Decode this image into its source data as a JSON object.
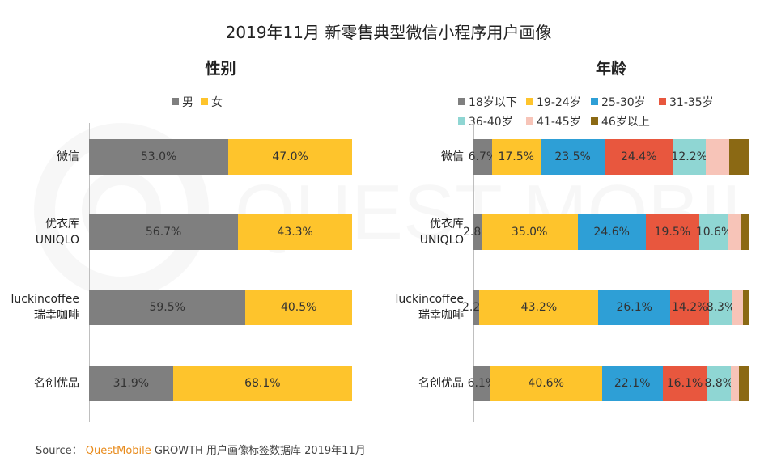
{
  "title": "2019年11月 新零售典型微信小程序用户画像",
  "source": {
    "prefix": "Source：",
    "brand": "QuestMobile",
    "text": "GROWTH 用户画像标签数据库 2019年11月"
  },
  "watermark": "QUEST MOBILE",
  "colors": {
    "gender": [
      "#7f7f7f",
      "#fec42c"
    ],
    "age": [
      "#7f7f7f",
      "#fec42c",
      "#2e9fd6",
      "#e8573e",
      "#8fd6d3",
      "#f7c4b8",
      "#8b6914"
    ]
  },
  "chart_data": [
    {
      "type": "bar",
      "stacked": "100%",
      "orientation": "horizontal",
      "title": "性别",
      "categories": [
        [
          "微信"
        ],
        [
          "优衣库",
          "UNIQLO"
        ],
        [
          "luckincoffee",
          "瑞幸咖啡"
        ],
        [
          "名创优品"
        ]
      ],
      "legend_position": "top",
      "series": [
        {
          "name": "男",
          "values": [
            53.0,
            56.7,
            59.5,
            31.9
          ],
          "labels": [
            "53.0%",
            "56.7%",
            "59.5%",
            "31.9%"
          ]
        },
        {
          "name": "女",
          "values": [
            47.0,
            43.3,
            40.5,
            68.1
          ],
          "labels": [
            "47.0%",
            "43.3%",
            "40.5%",
            "68.1%"
          ]
        }
      ]
    },
    {
      "type": "bar",
      "stacked": "100%",
      "orientation": "horizontal",
      "title": "年龄",
      "categories": [
        [
          "微信"
        ],
        [
          "优衣库",
          "UNIQLO"
        ],
        [
          "luckincoffee",
          "瑞幸咖啡"
        ],
        [
          "名创优品"
        ]
      ],
      "legend_position": "top",
      "series": [
        {
          "name": "18岁以下",
          "values": [
            6.7,
            2.8,
            2.2,
            6.1
          ],
          "labels": [
            "6.7%",
            "2.8%",
            "2.2%",
            "6.1%"
          ]
        },
        {
          "name": "19-24岁",
          "values": [
            17.5,
            35.0,
            43.2,
            40.6
          ],
          "labels": [
            "17.5%",
            "35.0%",
            "43.2%",
            "40.6%"
          ]
        },
        {
          "name": "25-30岁",
          "values": [
            23.5,
            24.6,
            26.1,
            22.1
          ],
          "labels": [
            "23.5%",
            "24.6%",
            "26.1%",
            "22.1%"
          ]
        },
        {
          "name": "31-35岁",
          "values": [
            24.4,
            19.5,
            14.2,
            16.1
          ],
          "labels": [
            "24.4%",
            "19.5%",
            "14.2%",
            "16.1%"
          ]
        },
        {
          "name": "36-40岁",
          "values": [
            12.2,
            10.6,
            8.3,
            8.8
          ],
          "labels": [
            "12.2%",
            "10.6%",
            "8.3%",
            "8.8%"
          ]
        },
        {
          "name": "41-45岁",
          "values": [
            8.5,
            4.5,
            3.8,
            2.9
          ],
          "labels": [
            "",
            "",
            "",
            ""
          ]
        },
        {
          "name": "46岁以上",
          "values": [
            6.9,
            2.8,
            2.2,
            3.5
          ],
          "labels": [
            "",
            "",
            "",
            ""
          ]
        }
      ]
    }
  ]
}
